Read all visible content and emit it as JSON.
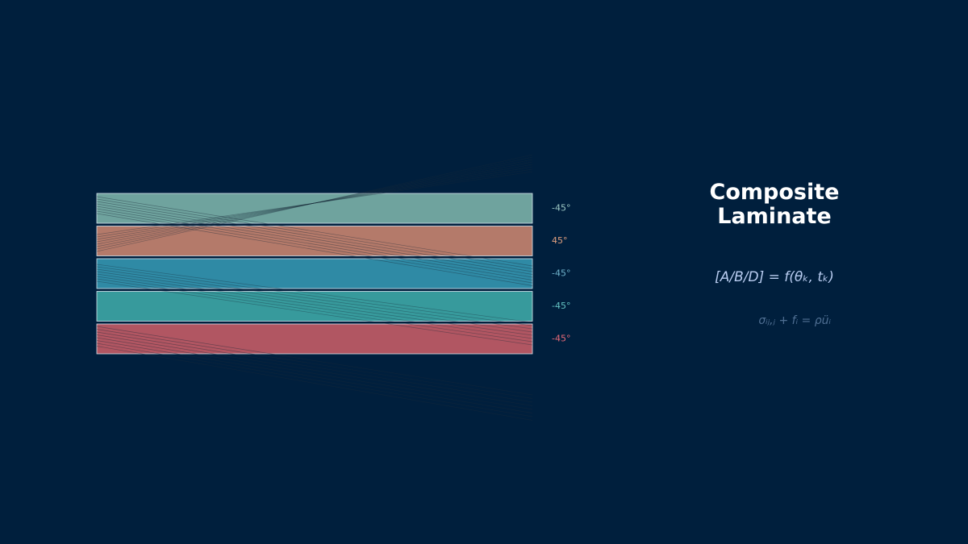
{
  "title": "Composite Laminate",
  "layers": [
    {
      "angle": "-45°",
      "color": "#6fa39e",
      "label_color": "#9cc8c4"
    },
    {
      "angle": "45°",
      "color": "#b47a6a",
      "label_color": "#e2a07f"
    },
    {
      "angle": "-45°",
      "color": "#2f8aa5",
      "label_color": "#6fb3cc"
    },
    {
      "angle": "-45°",
      "color": "#379a9c",
      "label_color": "#63c2c2"
    },
    {
      "angle": "-45°",
      "color": "#b15662",
      "label_color": "#e86a78"
    }
  ],
  "equations": [
    "[A/B/D] = f(θₖ, tₖ)",
    "σᵢⱼ,ⱼ + fᵢ = ρüᵢ"
  ]
}
